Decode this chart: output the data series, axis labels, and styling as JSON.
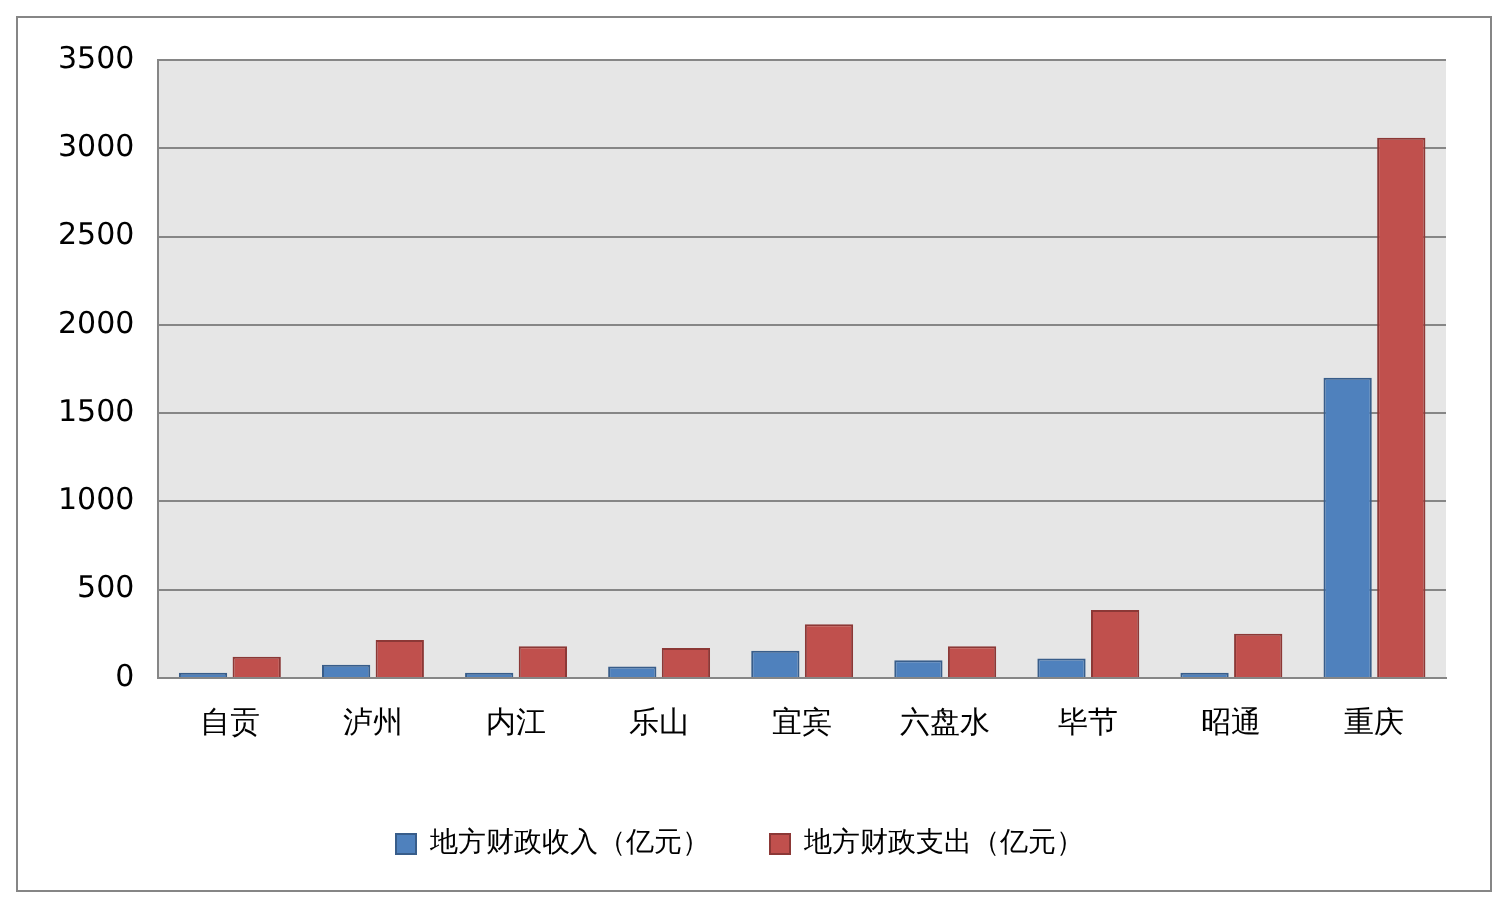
{
  "chart_data": {
    "type": "bar",
    "categories": [
      "自贡",
      "泸州",
      "内江",
      "乐山",
      "宜宾",
      "六盘水",
      "毕节",
      "昭通",
      "重庆"
    ],
    "series": [
      {
        "name": "地方财政收入（亿元）",
        "color": "#4f81bd",
        "values": [
          30,
          75,
          30,
          65,
          155,
          100,
          110,
          30,
          1700
        ]
      },
      {
        "name": "地方财政支出（亿元）",
        "color": "#c0504d",
        "values": [
          120,
          215,
          180,
          170,
          305,
          180,
          385,
          250,
          3060
        ]
      }
    ],
    "ylim": [
      0,
      3500
    ],
    "yticks": [
      0,
      500,
      1000,
      1500,
      2000,
      2500,
      3000,
      3500
    ],
    "grid": "y",
    "legend": "bottom"
  }
}
